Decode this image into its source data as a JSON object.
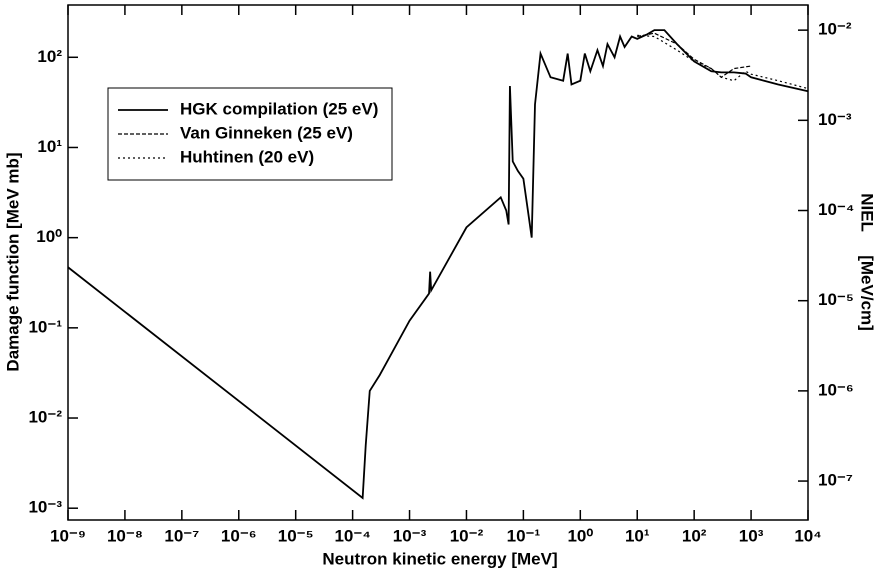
{
  "chart_data": {
    "type": "line",
    "xlabel": "Neutron kinetic energy  [MeV]",
    "ylabel": "Damage function [MeV mb]",
    "y2label": "NIEL     [MeV/cm]",
    "xscale": "log",
    "yscale": "log",
    "y2scale": "log",
    "xlim": [
      1e-09,
      10000
    ],
    "ylim": [
      0.00074,
      380
    ],
    "y2lim": [
      3.7e-08,
      0.019
    ],
    "xticks": [
      {
        "value": 1e-09,
        "label": "10⁻⁹"
      },
      {
        "value": 1e-08,
        "label": "10⁻⁸"
      },
      {
        "value": 1e-07,
        "label": "10⁻⁷"
      },
      {
        "value": 1e-06,
        "label": "10⁻⁶"
      },
      {
        "value": 1e-05,
        "label": "10⁻⁵"
      },
      {
        "value": 0.0001,
        "label": "10⁻⁴"
      },
      {
        "value": 0.001,
        "label": "10⁻³"
      },
      {
        "value": 0.01,
        "label": "10⁻²"
      },
      {
        "value": 0.1,
        "label": "10⁻¹"
      },
      {
        "value": 1,
        "label": "10⁰"
      },
      {
        "value": 10,
        "label": "10¹"
      },
      {
        "value": 100,
        "label": "10²"
      },
      {
        "value": 1000,
        "label": "10³"
      },
      {
        "value": 10000,
        "label": "10⁴"
      }
    ],
    "yticks": [
      {
        "value": 0.001,
        "label": "10⁻³"
      },
      {
        "value": 0.01,
        "label": "10⁻²"
      },
      {
        "value": 0.1,
        "label": "10⁻¹"
      },
      {
        "value": 1,
        "label": "10⁰"
      },
      {
        "value": 10,
        "label": "10¹"
      },
      {
        "value": 100,
        "label": "10²"
      }
    ],
    "y2ticks": [
      {
        "value": 1e-07,
        "label": "10⁻⁷"
      },
      {
        "value": 1e-06,
        "label": "10⁻⁶"
      },
      {
        "value": 1e-05,
        "label": "10⁻⁵"
      },
      {
        "value": 0.0001,
        "label": "10⁻⁴"
      },
      {
        "value": 0.001,
        "label": "10⁻³"
      },
      {
        "value": 0.01,
        "label": "10⁻²"
      }
    ],
    "legend": "upper left",
    "series": [
      {
        "name": "HGK compilation (25 eV)",
        "color": "#000000",
        "style": "solid",
        "x": [
          1e-09,
          0.00015,
          0.00017,
          0.0002,
          0.0003,
          0.001,
          0.0022,
          0.0023,
          0.0024,
          0.01,
          0.04,
          0.05,
          0.055,
          0.058,
          0.065,
          0.08,
          0.1,
          0.12,
          0.14,
          0.16,
          0.2,
          0.3,
          0.5,
          0.6,
          0.7,
          1,
          1.2,
          1.5,
          2,
          2.5,
          3,
          4,
          5,
          6,
          8,
          10,
          15,
          20,
          30,
          50,
          100,
          200,
          300,
          500,
          800,
          1000,
          3000,
          10000
        ],
        "values": [
          0.47,
          0.0013,
          0.005,
          0.02,
          0.03,
          0.12,
          0.24,
          0.42,
          0.26,
          1.3,
          2.8,
          2.0,
          1.4,
          48,
          7,
          5.5,
          4.5,
          2,
          1.0,
          30,
          110,
          60,
          55,
          110,
          50,
          55,
          110,
          70,
          120,
          80,
          140,
          100,
          170,
          130,
          170,
          160,
          180,
          200,
          200,
          140,
          90,
          70,
          68,
          68,
          66,
          60,
          50,
          42
        ]
      },
      {
        "name": "Van Ginneken (25 eV)",
        "color": "#000000",
        "style": "dashed",
        "x": [
          10,
          20,
          50,
          100,
          200,
          300,
          500,
          1000
        ],
        "values": [
          170,
          185,
          140,
          95,
          75,
          60,
          75,
          80
        ]
      },
      {
        "name": "Huhtinen (20 eV)",
        "color": "#000000",
        "style": "dotted",
        "x": [
          10,
          20,
          50,
          100,
          200,
          300,
          500,
          800,
          1000,
          3000,
          10000
        ],
        "values": [
          175,
          170,
          120,
          90,
          75,
          60,
          55,
          70,
          65,
          55,
          45
        ]
      }
    ]
  }
}
